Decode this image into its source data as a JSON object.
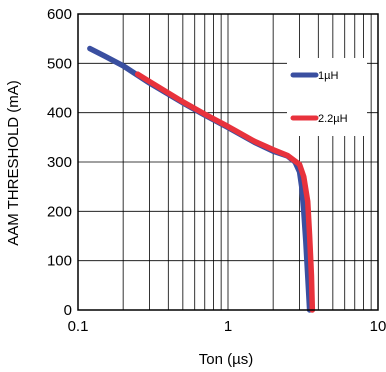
{
  "chart_data": {
    "type": "line",
    "title": "",
    "xlabel": "Ton (µs)",
    "ylabel": "AAM THRESHOLD (mA)",
    "x_scale": "log",
    "xlim": [
      0.1,
      10
    ],
    "ylim": [
      0,
      600
    ],
    "x_ticks": [
      "0.1",
      "1",
      "10"
    ],
    "y_ticks": [
      "0",
      "100",
      "200",
      "300",
      "400",
      "500",
      "600"
    ],
    "grid": true,
    "legend_position": "right",
    "series": [
      {
        "name": "1µH",
        "color": "#3a4fa0",
        "points": [
          [
            0.12,
            530
          ],
          [
            0.15,
            515
          ],
          [
            0.2,
            495
          ],
          [
            0.3,
            460
          ],
          [
            0.5,
            420
          ],
          [
            0.7,
            395
          ],
          [
            1.0,
            370
          ],
          [
            1.5,
            340
          ],
          [
            2.0,
            322
          ],
          [
            2.5,
            312
          ],
          [
            2.8,
            300
          ],
          [
            3.0,
            280
          ],
          [
            3.1,
            250
          ],
          [
            3.2,
            200
          ],
          [
            3.3,
            140
          ],
          [
            3.4,
            70
          ],
          [
            3.5,
            0
          ]
        ]
      },
      {
        "name": "2.2µH",
        "color": "#e8323c",
        "points": [
          [
            0.25,
            478
          ],
          [
            0.3,
            463
          ],
          [
            0.5,
            422
          ],
          [
            0.7,
            397
          ],
          [
            1.0,
            372
          ],
          [
            1.5,
            342
          ],
          [
            2.0,
            325
          ],
          [
            2.5,
            313
          ],
          [
            3.0,
            295
          ],
          [
            3.2,
            270
          ],
          [
            3.4,
            220
          ],
          [
            3.5,
            150
          ],
          [
            3.6,
            70
          ],
          [
            3.65,
            0
          ]
        ]
      }
    ]
  }
}
